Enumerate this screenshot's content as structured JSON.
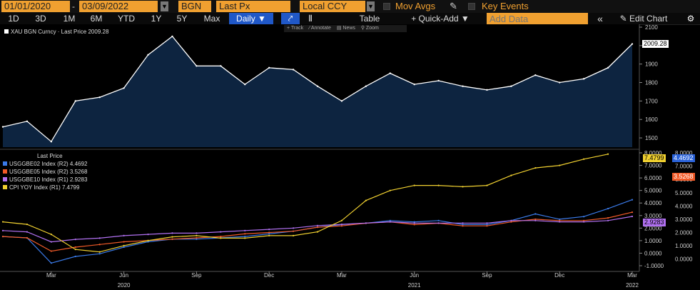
{
  "toolbar": {
    "start_date": "01/01/2020",
    "date_sep": "-",
    "end_date": "03/09/2022",
    "source": "BGN",
    "field": "Last Px",
    "currency": "Local CCY",
    "mov_avgs": "Mov Avgs",
    "key_events": "Key Events"
  },
  "toolbar2": {
    "periods": [
      "1D",
      "3D",
      "1M",
      "6M",
      "YTD",
      "1Y",
      "5Y",
      "Max"
    ],
    "frequency": "Daily ▼",
    "table": "Table",
    "quick_add": "+ Quick-Add ▼",
    "add_data_placeholder": "Add Data",
    "collapse": "«",
    "edit_chart": "✎ Edit Chart"
  },
  "upper_hint": {
    "track": "+ Track",
    "annotate": "⁄ Annotate",
    "news": "▤ News",
    "zoom": "⚲ Zoom"
  },
  "upper_legend": "XAU BGN Curncy · Last Price 2009.28",
  "lower_legend": {
    "title": "Last Price",
    "items": [
      {
        "text": "USGGBE02 Index  (R2) 4.4692",
        "color": "#3a7ae8"
      },
      {
        "text": "USGGBE05 Index  (R2) 3.5268",
        "color": "#f05a28"
      },
      {
        "text": "USGGBE10 Index  (R1) 2.9283",
        "color": "#b070f0"
      },
      {
        "text": "CPI YOY Index  (R1)   7.4799",
        "color": "#f0d030"
      }
    ]
  },
  "badges": {
    "gold": "2009.28",
    "cpi": "7.4799",
    "be02": "4.4692",
    "be05": "3.5268",
    "be10": "2.9283"
  },
  "x_months": [
    "Mar",
    "Jun",
    "Sep",
    "Dec",
    "Mar",
    "Jun",
    "Sep",
    "Dec",
    "Mar"
  ],
  "x_years": [
    "2020",
    "2021",
    "2022"
  ],
  "colors": {
    "accent": "#f0a030",
    "selected": "#2058c8",
    "gold_fill": "#0d2440"
  },
  "chart_data": [
    {
      "type": "area",
      "title": "XAU BGN Curncy Last Price",
      "x": [
        "2020-01",
        "2020-02",
        "2020-03",
        "2020-04",
        "2020-05",
        "2020-06",
        "2020-07",
        "2020-08",
        "2020-09",
        "2020-10",
        "2020-11",
        "2020-12",
        "2021-01",
        "2021-02",
        "2021-03",
        "2021-04",
        "2021-05",
        "2021-06",
        "2021-07",
        "2021-08",
        "2021-09",
        "2021-10",
        "2021-11",
        "2021-12",
        "2022-01",
        "2022-02",
        "2022-03"
      ],
      "series": [
        {
          "name": "XAU BGN Curncy",
          "values": [
            1560,
            1590,
            1480,
            1700,
            1720,
            1770,
            1950,
            2050,
            1890,
            1890,
            1790,
            1880,
            1870,
            1780,
            1700,
            1780,
            1850,
            1790,
            1810,
            1780,
            1760,
            1780,
            1840,
            1800,
            1820,
            1880,
            2009
          ]
        }
      ],
      "ylim": [
        1450,
        2100
      ],
      "yticks": [
        1500,
        1600,
        1700,
        1800,
        1900,
        2000,
        2100
      ]
    },
    {
      "type": "line",
      "x": [
        "2020-01",
        "2020-02",
        "2020-03",
        "2020-04",
        "2020-05",
        "2020-06",
        "2020-07",
        "2020-08",
        "2020-09",
        "2020-10",
        "2020-11",
        "2020-12",
        "2021-01",
        "2021-02",
        "2021-03",
        "2021-04",
        "2021-05",
        "2021-06",
        "2021-07",
        "2021-08",
        "2021-09",
        "2021-10",
        "2021-11",
        "2021-12",
        "2022-01",
        "2022-02",
        "2022-03"
      ],
      "series": [
        {
          "name": "USGGBE02 Index",
          "axis": "R2",
          "values": [
            1.7,
            1.6,
            -0.3,
            0.2,
            0.4,
            0.9,
            1.3,
            1.5,
            1.5,
            1.6,
            1.7,
            1.9,
            2.1,
            2.4,
            2.6,
            2.7,
            2.9,
            2.8,
            2.9,
            2.6,
            2.6,
            2.9,
            3.4,
            3.0,
            3.2,
            3.8,
            4.47
          ]
        },
        {
          "name": "USGGBE05 Index",
          "axis": "R2",
          "values": [
            1.7,
            1.6,
            0.6,
            0.9,
            1.1,
            1.3,
            1.4,
            1.5,
            1.6,
            1.7,
            1.9,
            2.0,
            2.1,
            2.4,
            2.5,
            2.7,
            2.8,
            2.6,
            2.7,
            2.5,
            2.5,
            2.8,
            3.0,
            2.9,
            2.9,
            3.1,
            3.53
          ]
        },
        {
          "name": "USGGBE10 Index",
          "axis": "R1",
          "values": [
            1.8,
            1.7,
            0.9,
            1.1,
            1.2,
            1.4,
            1.5,
            1.6,
            1.6,
            1.7,
            1.8,
            1.9,
            2.0,
            2.2,
            2.3,
            2.4,
            2.5,
            2.4,
            2.4,
            2.4,
            2.4,
            2.6,
            2.6,
            2.5,
            2.5,
            2.6,
            2.93
          ]
        },
        {
          "name": "CPI YOY Index",
          "axis": "R1",
          "values": [
            2.5,
            2.3,
            1.5,
            0.3,
            0.1,
            0.6,
            1.0,
            1.3,
            1.4,
            1.2,
            1.2,
            1.4,
            1.4,
            1.7,
            2.6,
            4.2,
            5.0,
            5.4,
            5.4,
            5.3,
            5.4,
            6.2,
            6.8,
            7.0,
            7.5,
            7.9,
            null
          ]
        }
      ],
      "ylim_r1": [
        -1.0,
        8.0
      ],
      "yticks_r1": [
        -1.0,
        0.0,
        1.0,
        2.0,
        3.0,
        4.0,
        5.0,
        6.0,
        7.0,
        8.0
      ],
      "ylim_r2": [
        -0.5,
        8.0
      ],
      "yticks_r2": [
        0.0,
        1.0,
        2.0,
        3.0,
        4.0,
        5.0,
        6.0,
        7.0,
        8.0
      ],
      "legend": "top-left"
    }
  ]
}
